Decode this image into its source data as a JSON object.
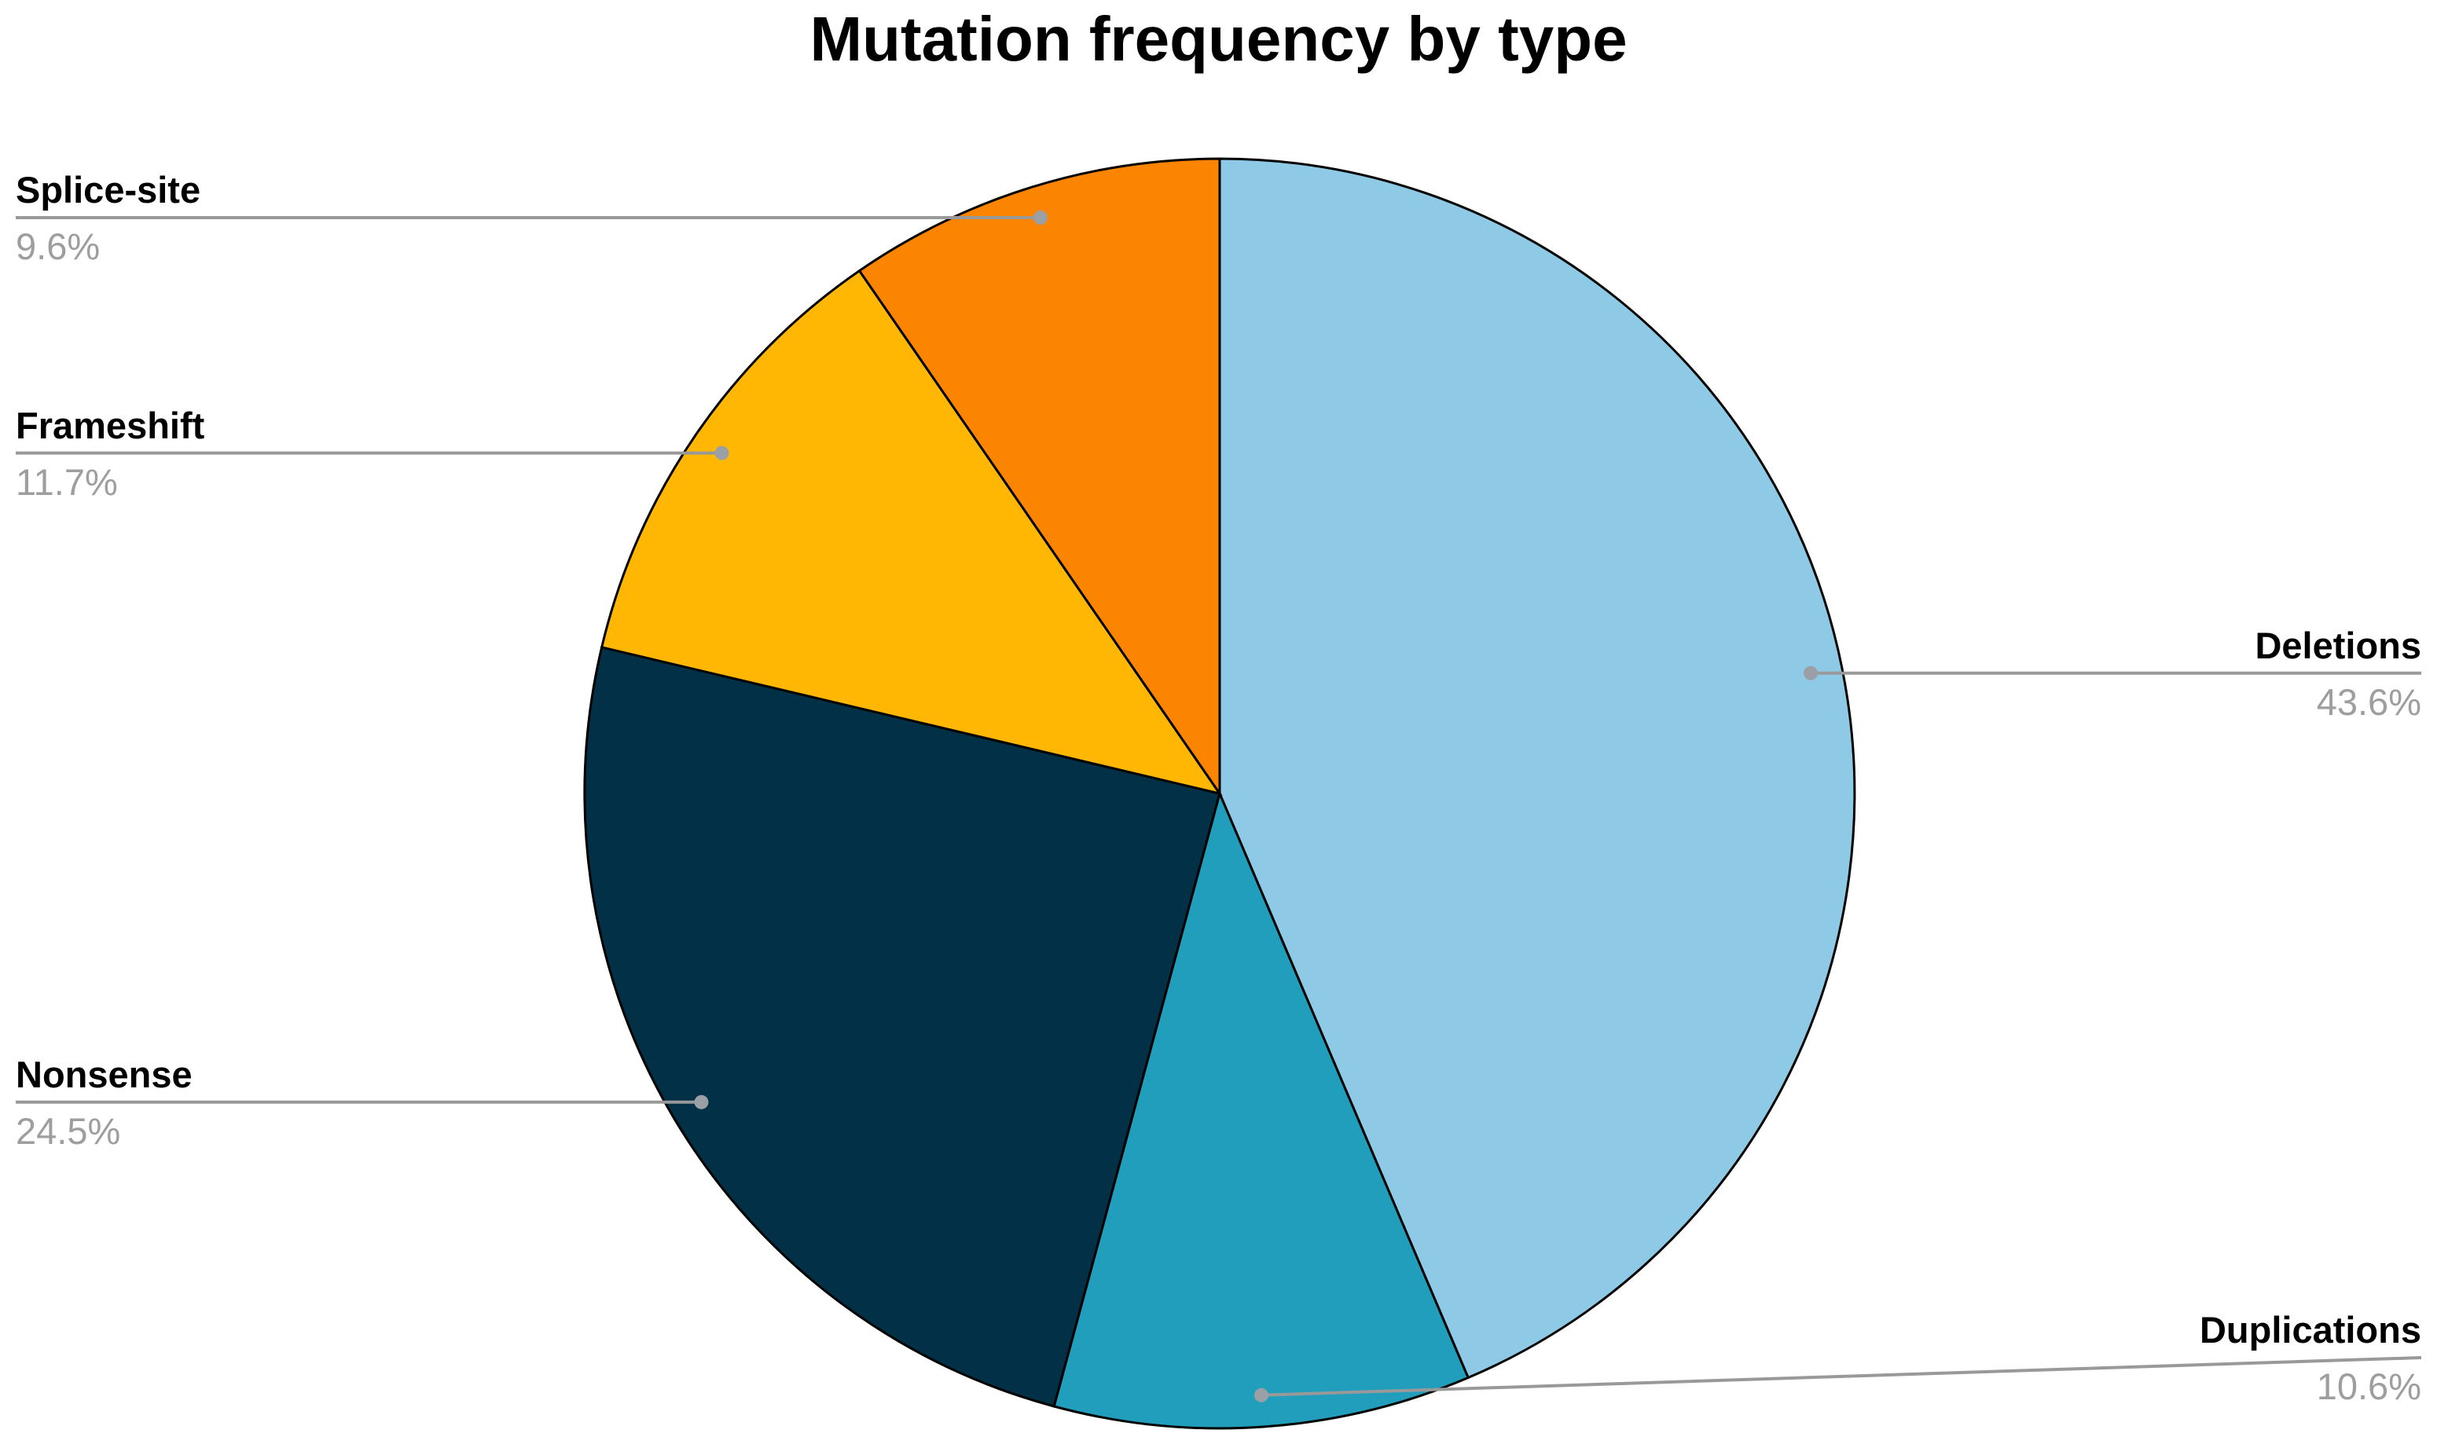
{
  "chart_data": {
    "type": "pie",
    "title": "Mutation frequency by type",
    "start_angle_deg": 0,
    "direction": "clockwise",
    "legend_position": "none-external-callout-labels",
    "background": "#ffffff",
    "slices": [
      {
        "label": "Deletions",
        "value": 43.6,
        "pct_label": "43.6%",
        "color": "#8ECAE6"
      },
      {
        "label": "Duplications",
        "value": 10.6,
        "pct_label": "10.6%",
        "color": "#219EBC"
      },
      {
        "label": "Nonsense",
        "value": 24.5,
        "pct_label": "24.5%",
        "color": "#023047"
      },
      {
        "label": "Frameshift",
        "value": 11.7,
        "pct_label": "11.7%",
        "color": "#FFB703"
      },
      {
        "label": "Splice-site",
        "value": 9.6,
        "pct_label": "9.6%",
        "color": "#FB8500"
      }
    ],
    "styles": {
      "slice_border_color": "#000000",
      "leader_line_color": "#999999",
      "leader_dot_color": "#9aa0a6",
      "label_name_color": "#000000",
      "label_pct_color": "#9e9e9e",
      "title_color": "#000000"
    }
  }
}
